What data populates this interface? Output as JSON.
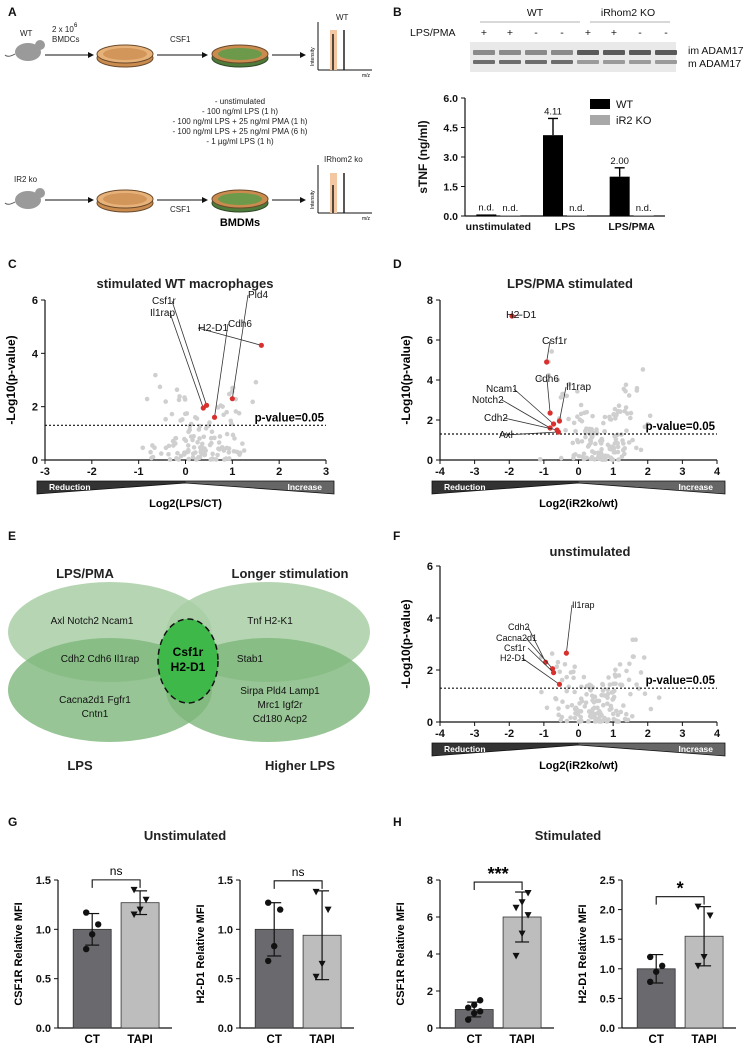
{
  "panels": {
    "A": {
      "label": "A",
      "wt": "WT",
      "ko": "IR2 ko",
      "cells": "2 x 10",
      "cells_exp": "6",
      "bmdc": "BMDCs",
      "csf1_top": "CSF1",
      "csf1_bot": "CSF1",
      "bmdms": "BMDMs",
      "ms_wt": "WT",
      "ms_ko": "IRhom2 ko",
      "intensity": "Intensity",
      "mz": "m/z",
      "conditions": [
        "- unstimulated",
        "- 100 ng/ml LPS (1 h)",
        "- 100 ng/ml LPS + 25 ng/ml PMA (1 h)",
        "- 100 ng/ml LPS + 25 ng/ml PMA (6 h)",
        "- 1 µg/ml LPS (1 h)"
      ]
    },
    "B": {
      "label": "B",
      "blot_wt": "WT",
      "blot_ko": "iRhom2 KO",
      "lps_pma": "LPS/PMA",
      "signs": [
        "+",
        "+",
        "-",
        "-",
        "+",
        "+",
        "-",
        "-"
      ],
      "band_im": "im ADAM17",
      "band_m": "m ADAM17",
      "legend": [
        {
          "name": "WT",
          "color": "#000000"
        },
        {
          "name": "iR2 KO",
          "color": "#a8a8a8"
        }
      ]
    },
    "C": {
      "label": "C",
      "title": "stimulated WT macrophages",
      "ylabel": "-Log10(p-value)",
      "xlabel": "Log2(LPS/CT)",
      "pthr": "p-value=0.05",
      "reduction": "Reduction",
      "increase": "Increase"
    },
    "D": {
      "label": "D",
      "title": "LPS/PMA stimulated",
      "ylabel": "-Log10(p-value)",
      "xlabel": "Log2(iR2ko/wt)",
      "pthr": "p-value=0.05",
      "reduction": "Reduction",
      "increase": "Increase"
    },
    "E": {
      "label": "E",
      "lps_pma": "LPS/PMA",
      "longer": "Longer stimulation",
      "lps": "LPS",
      "higher": "Higher LPS",
      "center1": "Csf1r",
      "center2": "H2-D1",
      "g_lpspma": "Axl  Notch2  Ncam1",
      "g_longer": "Tnf  H2-K1",
      "g_mid_left": "Cdh2  Cdh6  Il1rap",
      "g_mid_right": "Stab1",
      "g_lps1": "Cacna2d1  Fgfr1",
      "g_lps2": "Cntn1",
      "g_high1": "Sirpa Pld4 Lamp1",
      "g_high2": "Mrc1 Igf2r",
      "g_high3": "Cd180 Acp2"
    },
    "F": {
      "label": "F",
      "title": "unstimulated",
      "ylabel": "-Log10(p-value)",
      "xlabel": "Log2(iR2ko/wt)",
      "pthr": "p-value=0.05",
      "reduction": "Reduction",
      "increase": "Increase"
    },
    "G": {
      "label": "G",
      "title": "Unstimulated",
      "y1": "CSF1R Relative MFI",
      "y2": "H2-D1 Relative MFI",
      "sig1": "ns",
      "sig2": "ns"
    },
    "H": {
      "label": "H",
      "title": "Stimulated",
      "y1": "CSF1R Relative MFI",
      "y2": "H2-D1 Relative MFI",
      "sig1": "***",
      "sig2": "*"
    }
  },
  "chart_data": [
    {
      "id": "B-sTNF",
      "type": "bar",
      "ylabel": "sTNF (ng/ml)",
      "ylim": [
        0,
        6
      ],
      "yticks": [
        "0.0",
        "1.5",
        "3.0",
        "4.5",
        "6.0"
      ],
      "categories": [
        "unstimulated",
        "LPS",
        "LPS/PMA"
      ],
      "series": [
        {
          "name": "WT",
          "values": [
            0.08,
            4.11,
            2.0
          ],
          "errors": [
            0,
            0.85,
            0.45
          ],
          "labels": [
            "n.d.",
            "4.11",
            "2.00"
          ],
          "color": "#000000"
        },
        {
          "name": "iR2 KO",
          "values": [
            0.05,
            0.05,
            0.05
          ],
          "errors": [
            0,
            0,
            0
          ],
          "labels": [
            "n.d.",
            "n.d.",
            "n.d."
          ],
          "color": "#a8a8a8"
        }
      ]
    },
    {
      "id": "C-volcano",
      "type": "scatter",
      "title": "stimulated WT macrophages",
      "xlabel": "Log2(LPS/CT)",
      "ylabel": "-Log10(p-value)",
      "xlim": [
        -3,
        3
      ],
      "ylim": [
        0,
        6
      ],
      "xticks": [
        "-3",
        "-2",
        "-1",
        "0",
        "1",
        "2",
        "3"
      ],
      "yticks": [
        "0",
        "2",
        "4",
        "6"
      ],
      "threshold": 1.3,
      "highlight": [
        {
          "name": "H2-D1",
          "x": 1.62,
          "y": 4.3
        },
        {
          "name": "Csf1r",
          "x": 0.45,
          "y": 2.05
        },
        {
          "name": "Il1rap",
          "x": 0.38,
          "y": 1.95
        },
        {
          "name": "Pld4",
          "x": 1.0,
          "y": 2.3
        },
        {
          "name": "Cdh6",
          "x": 0.62,
          "y": 1.6
        }
      ]
    },
    {
      "id": "D-volcano",
      "type": "scatter",
      "title": "LPS/PMA stimulated",
      "xlabel": "Log2(iR2ko/wt)",
      "ylabel": "-Log10(p-value)",
      "xlim": [
        -4,
        4
      ],
      "ylim": [
        0,
        8
      ],
      "xticks": [
        "-4",
        "-3",
        "-2",
        "-1",
        "0",
        "1",
        "2",
        "3",
        "4"
      ],
      "yticks": [
        "0",
        "2",
        "4",
        "6",
        "8"
      ],
      "threshold": 1.3,
      "highlight": [
        {
          "name": "H2-D1",
          "x": -1.92,
          "y": 7.2
        },
        {
          "name": "Csf1r",
          "x": -0.92,
          "y": 4.9
        },
        {
          "name": "Cdh6",
          "x": -0.82,
          "y": 2.35
        },
        {
          "name": "Ncam1",
          "x": -0.72,
          "y": 1.8
        },
        {
          "name": "Il1rap",
          "x": -0.55,
          "y": 1.95
        },
        {
          "name": "Notch2",
          "x": -0.82,
          "y": 1.6
        },
        {
          "name": "Cdh2",
          "x": -0.62,
          "y": 1.5
        },
        {
          "name": "Axl",
          "x": -0.58,
          "y": 1.4
        }
      ]
    },
    {
      "id": "F-volcano",
      "type": "scatter",
      "title": "unstimulated",
      "xlabel": "Log2(iR2ko/wt)",
      "ylabel": "-Log10(p-value)",
      "xlim": [
        -4,
        4
      ],
      "ylim": [
        0,
        6
      ],
      "xticks": [
        "-4",
        "-3",
        "-2",
        "-1",
        "0",
        "1",
        "2",
        "3",
        "4"
      ],
      "yticks": [
        "0",
        "2",
        "4",
        "6"
      ],
      "threshold": 1.3,
      "highlight": [
        {
          "name": "Il1rap",
          "x": -0.35,
          "y": 2.65
        },
        {
          "name": "Cdh2",
          "x": -0.95,
          "y": 2.3
        },
        {
          "name": "Cacna2d1",
          "x": -0.75,
          "y": 2.05
        },
        {
          "name": "Csf1r",
          "x": -0.72,
          "y": 1.9
        },
        {
          "name": "H2-D1",
          "x": -0.55,
          "y": 1.45
        }
      ]
    },
    {
      "id": "G1",
      "type": "bar",
      "ylabel": "CSF1R Relative MFI",
      "ylim": [
        0,
        1.5
      ],
      "yticks": [
        "0.0",
        "0.5",
        "1.0",
        "1.5"
      ],
      "categories": [
        "CT",
        "TAPI"
      ],
      "values": [
        1.0,
        1.27
      ],
      "errors": [
        0.16,
        0.12
      ],
      "points": [
        [
          0.8,
          0.95,
          1.05,
          1.17
        ],
        [
          1.15,
          1.2,
          1.3,
          1.4
        ]
      ],
      "significance": "ns"
    },
    {
      "id": "G2",
      "type": "bar",
      "ylabel": "H2-D1 Relative MFI",
      "ylim": [
        0,
        1.5
      ],
      "yticks": [
        "0.0",
        "0.5",
        "1.0",
        "1.5"
      ],
      "categories": [
        "CT",
        "TAPI"
      ],
      "values": [
        1.0,
        0.94
      ],
      "errors": [
        0.27,
        0.45
      ],
      "points": [
        [
          0.68,
          0.83,
          1.2,
          1.27
        ],
        [
          0.52,
          0.65,
          1.2,
          1.38
        ]
      ],
      "significance": "ns"
    },
    {
      "id": "H1",
      "type": "bar",
      "ylabel": "CSF1R Relative MFI",
      "ylim": [
        0,
        8
      ],
      "yticks": [
        "0",
        "2",
        "4",
        "6",
        "8"
      ],
      "categories": [
        "CT",
        "TAPI"
      ],
      "values": [
        1.0,
        6.0
      ],
      "errors": [
        0.4,
        1.35
      ],
      "points": [
        [
          0.45,
          0.8,
          0.9,
          1.1,
          1.25,
          1.5
        ],
        [
          3.9,
          5.1,
          6.1,
          6.5,
          6.8,
          7.3
        ]
      ],
      "significance": "***"
    },
    {
      "id": "H2",
      "type": "bar",
      "ylabel": "H2-D1 Relative MFI",
      "ylim": [
        0,
        2.5
      ],
      "yticks": [
        "0.0",
        "0.5",
        "1.0",
        "1.5",
        "2.0",
        "2.5"
      ],
      "categories": [
        "CT",
        "TAPI"
      ],
      "values": [
        1.0,
        1.55
      ],
      "errors": [
        0.24,
        0.5
      ],
      "points": [
        [
          0.78,
          0.95,
          1.05,
          1.2
        ],
        [
          1.05,
          1.2,
          1.9,
          2.05
        ]
      ],
      "significance": "*"
    }
  ]
}
